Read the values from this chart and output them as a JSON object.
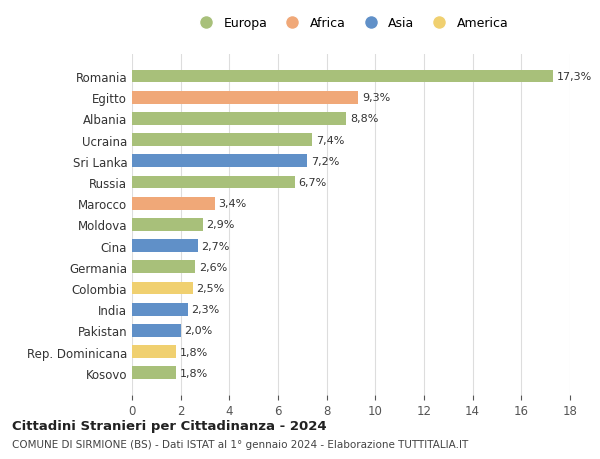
{
  "countries": [
    "Romania",
    "Egitto",
    "Albania",
    "Ucraina",
    "Sri Lanka",
    "Russia",
    "Marocco",
    "Moldova",
    "Cina",
    "Germania",
    "Colombia",
    "India",
    "Pakistan",
    "Rep. Dominicana",
    "Kosovo"
  ],
  "values": [
    17.3,
    9.3,
    8.8,
    7.4,
    7.2,
    6.7,
    3.4,
    2.9,
    2.7,
    2.6,
    2.5,
    2.3,
    2.0,
    1.8,
    1.8
  ],
  "labels": [
    "17,3%",
    "9,3%",
    "8,8%",
    "7,4%",
    "7,2%",
    "6,7%",
    "3,4%",
    "2,9%",
    "2,7%",
    "2,6%",
    "2,5%",
    "2,3%",
    "2,0%",
    "1,8%",
    "1,8%"
  ],
  "continents": [
    "Europa",
    "Africa",
    "Europa",
    "Europa",
    "Asia",
    "Europa",
    "Africa",
    "Europa",
    "Asia",
    "Europa",
    "America",
    "Asia",
    "Asia",
    "America",
    "Europa"
  ],
  "colors": {
    "Europa": "#a8c07a",
    "Africa": "#f0a878",
    "Asia": "#6090c8",
    "America": "#f0d070"
  },
  "legend_order": [
    "Europa",
    "Africa",
    "Asia",
    "America"
  ],
  "title": "Cittadini Stranieri per Cittadinanza - 2024",
  "subtitle": "COMUNE DI SIRMIONE (BS) - Dati ISTAT al 1° gennaio 2024 - Elaborazione TUTTITALIA.IT",
  "xlim": [
    0,
    18
  ],
  "xticks": [
    0,
    2,
    4,
    6,
    8,
    10,
    12,
    14,
    16,
    18
  ],
  "background_color": "#ffffff",
  "grid_color": "#dddddd"
}
